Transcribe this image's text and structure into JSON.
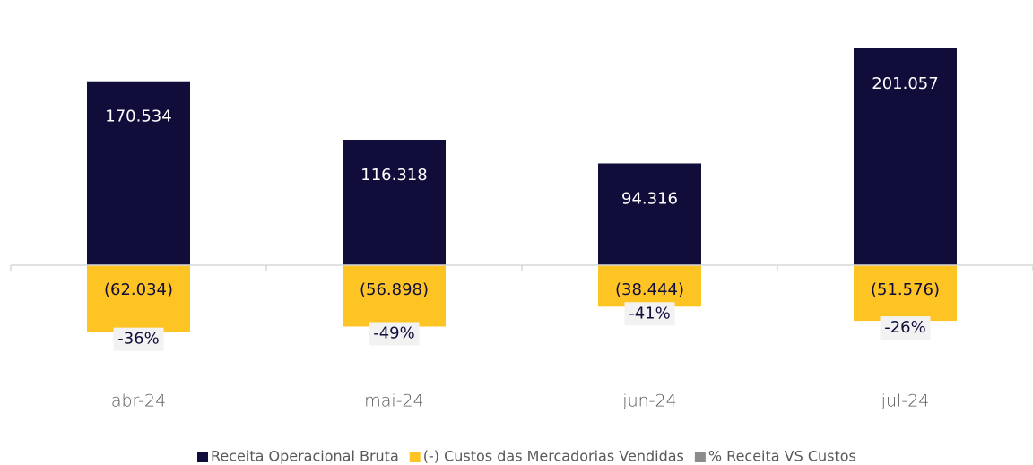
{
  "chart_data": {
    "type": "bar",
    "categories": [
      "abr-24",
      "mai-24",
      "jun-24",
      "jul-24"
    ],
    "series": [
      {
        "name": "Receita Operacional Bruta",
        "color": "#100d3b",
        "values": [
          170534,
          116318,
          94316,
          201057
        ],
        "value_labels": [
          "170.534",
          "116.318",
          "94.316",
          "201.057"
        ]
      },
      {
        "name": "(-) Custos das Mercadorias Vendidas",
        "color": "#fec423",
        "values": [
          -62034,
          -56898,
          -38444,
          -51576
        ],
        "value_labels": [
          "(62.034)",
          "(56.898)",
          "(38.444)",
          "(51.576)"
        ]
      },
      {
        "name": "% Receita VS Custos",
        "color": "#8c8c8c",
        "values": [
          -36,
          -49,
          -41,
          -26
        ],
        "value_labels": [
          "-36%",
          "-49%",
          "-41%",
          "-26%"
        ]
      }
    ],
    "ylim": [
      -80000,
      220000
    ],
    "legend": "bottom"
  }
}
